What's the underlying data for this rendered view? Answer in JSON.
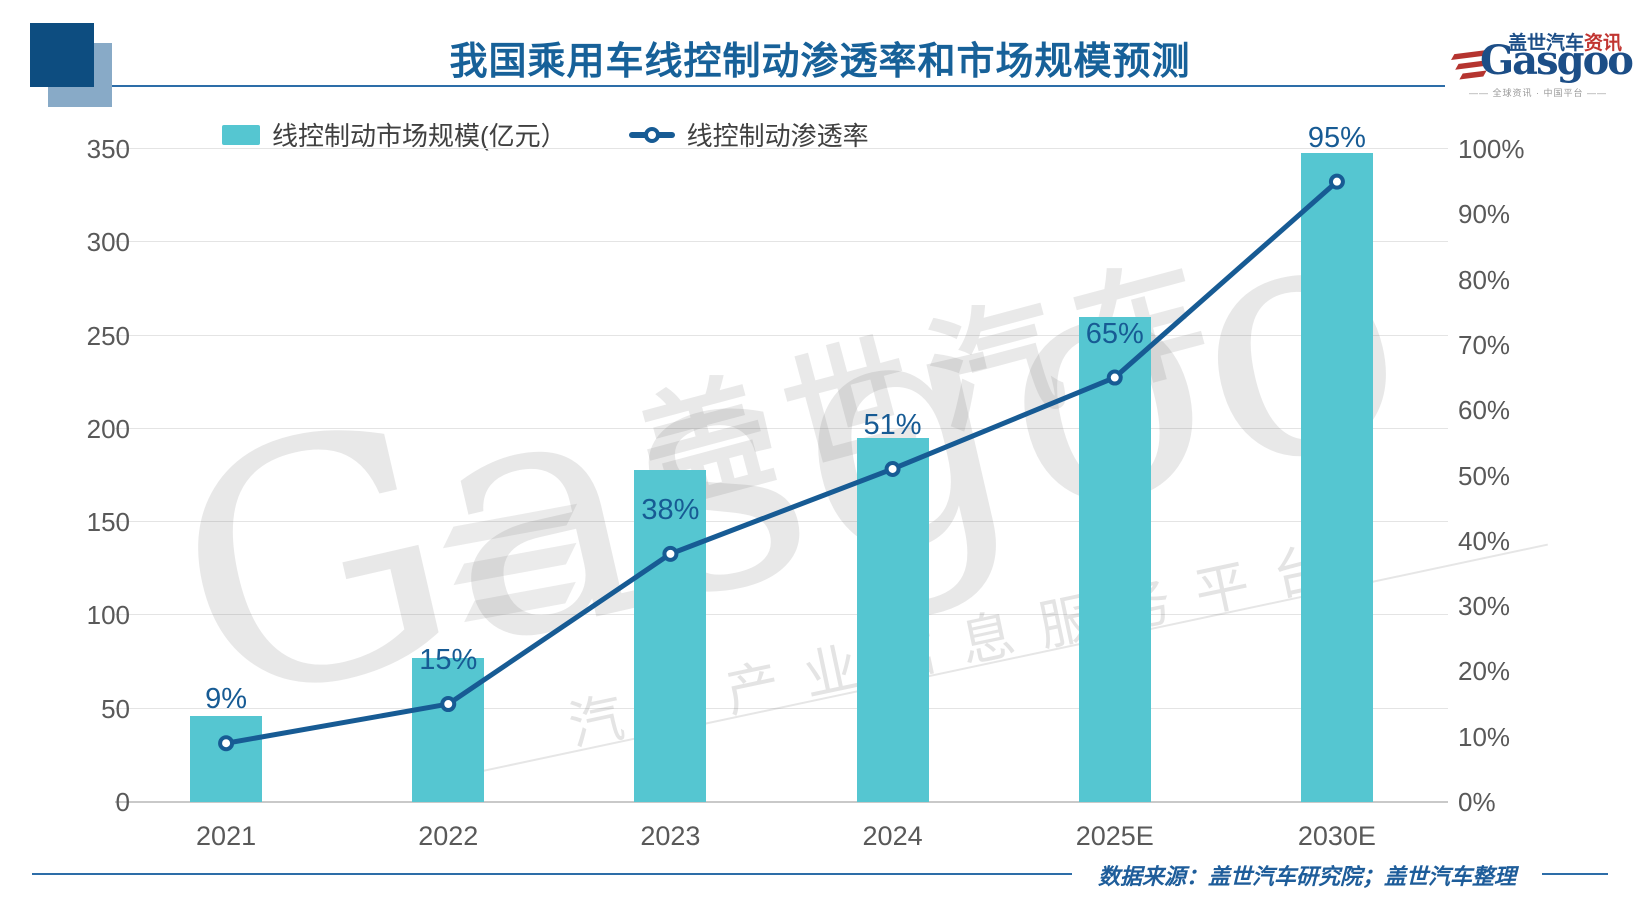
{
  "header": {
    "title": "我国乘用车线控制动渗透率和市场规模预测",
    "logo": {
      "zh": "盖世汽车",
      "zh_suffix": "资讯",
      "en": "Gasgoo",
      "tagline": "—— 全球资讯 · 中国平台 ——"
    }
  },
  "legend": [
    {
      "label": "线控制动市场规模(亿元）",
      "color": "#55c6d1",
      "type": "bar"
    },
    {
      "label": "线控制动渗透率",
      "color": "#175b94",
      "type": "line"
    }
  ],
  "chart_data": {
    "type": "bar+line combo",
    "title": "我国乘用车线控制动渗透率和市场规模预测",
    "categories": [
      "2021",
      "2022",
      "2023",
      "2024",
      "2025E",
      "2030E"
    ],
    "series": [
      {
        "name": "线控制动市场规模(亿元）",
        "type": "bar",
        "axis": "left",
        "color": "#55c6d1",
        "values": [
          46,
          77,
          178,
          195,
          260,
          348
        ]
      },
      {
        "name": "线控制动渗透率",
        "type": "line",
        "axis": "right",
        "color": "#175b94",
        "values": [
          9,
          15,
          38,
          51,
          65,
          95
        ],
        "labels": [
          "9%",
          "15%",
          "38%",
          "51%",
          "65%",
          "95%"
        ]
      }
    ],
    "left_axis": {
      "min": 0,
      "max": 350,
      "step": 50,
      "ticks": [
        "0",
        "50",
        "100",
        "150",
        "200",
        "250",
        "300",
        "350"
      ]
    },
    "right_axis": {
      "min": 0,
      "max": 100,
      "step": 10,
      "ticks": [
        "0%",
        "10%",
        "20%",
        "30%",
        "40%",
        "50%",
        "60%",
        "70%",
        "80%",
        "90%",
        "100%"
      ]
    },
    "grid": true,
    "legend_position": "top-left"
  },
  "watermark": {
    "en": "Gasgoo",
    "zh": "盖世汽车",
    "tagline": "汽车产业信息服务平台"
  },
  "footer": {
    "source": "数据来源：盖世汽车研究院；盖世汽车整理"
  }
}
